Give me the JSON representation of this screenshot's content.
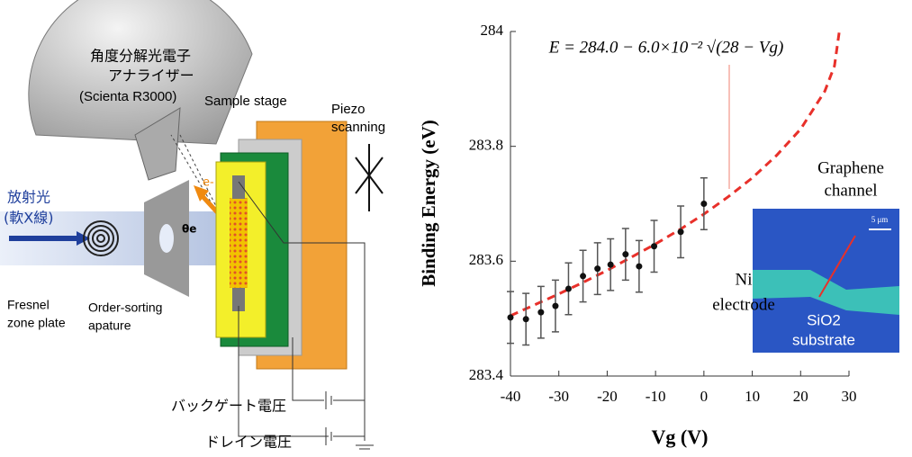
{
  "diagram": {
    "analyzer_line1": "角度分解光電子",
    "analyzer_line2": "アナライザー",
    "analyzer_line3": "(Scienta R3000)",
    "sample_stage": "Sample stage",
    "piezo_line1": "Piezo",
    "piezo_line2": "scanning",
    "radiation_line1": "放射光",
    "radiation_line2": "(軟X線)",
    "fresnel_line1": "Fresnel",
    "fresnel_line2": "zone plate",
    "osa_line1": "Order-sorting",
    "osa_line2": "apature",
    "backgate": "バックゲート電圧",
    "drain": "ドレイン電圧",
    "electron": "e-",
    "theta": "θe"
  },
  "inset": {
    "graphene_line1": "Graphene",
    "graphene_line2": "channel",
    "ni_line1": "Ni",
    "ni_line2": "electrode",
    "sio2_line1": "SiO2",
    "sio2_line2": "substrate",
    "scale": "5 μm"
  },
  "chart_data": {
    "type": "scatter",
    "y_label": "Binding Energy (eV)",
    "x_label": "Vg (V)",
    "annotation": "E = 284.0 − 6.0×10⁻² √(28 − Vg)",
    "xlim": [
      -40,
      30
    ],
    "ylim": [
      283.4,
      284
    ],
    "xticks": [
      -40,
      -30,
      -20,
      -10,
      0,
      10,
      20,
      30
    ],
    "yticks": [
      283.4,
      283.6,
      283.8,
      284
    ],
    "series": [
      {
        "color": "#111111",
        "x": [
          -40,
          -36.8,
          -33.7,
          -30.7,
          -28,
          -25,
          -22,
          -19.3,
          -16.2,
          -13.4,
          -10.3,
          -4.8,
          0
        ],
        "values": [
          283.502,
          283.499,
          283.511,
          283.522,
          283.552,
          283.574,
          283.587,
          283.594,
          283.612,
          283.591,
          283.626,
          283.651,
          283.7
        ],
        "errors": [
          0.045,
          0.045,
          0.045,
          0.045,
          0.045,
          0.045,
          0.045,
          0.045,
          0.045,
          0.045,
          0.045,
          0.045,
          0.045
        ]
      },
      {
        "color": "#e8302a",
        "x": [
          -40,
          -35,
          -30,
          -25,
          -20,
          -15,
          -10,
          -5,
          0,
          5,
          10,
          15,
          20,
          25,
          27,
          28
        ],
        "values": [
          283.505,
          283.524,
          283.543,
          283.563,
          283.584,
          283.607,
          283.63,
          283.655,
          283.682,
          283.712,
          283.745,
          283.784,
          283.83,
          283.896,
          283.94,
          284.0
        ]
      }
    ]
  }
}
